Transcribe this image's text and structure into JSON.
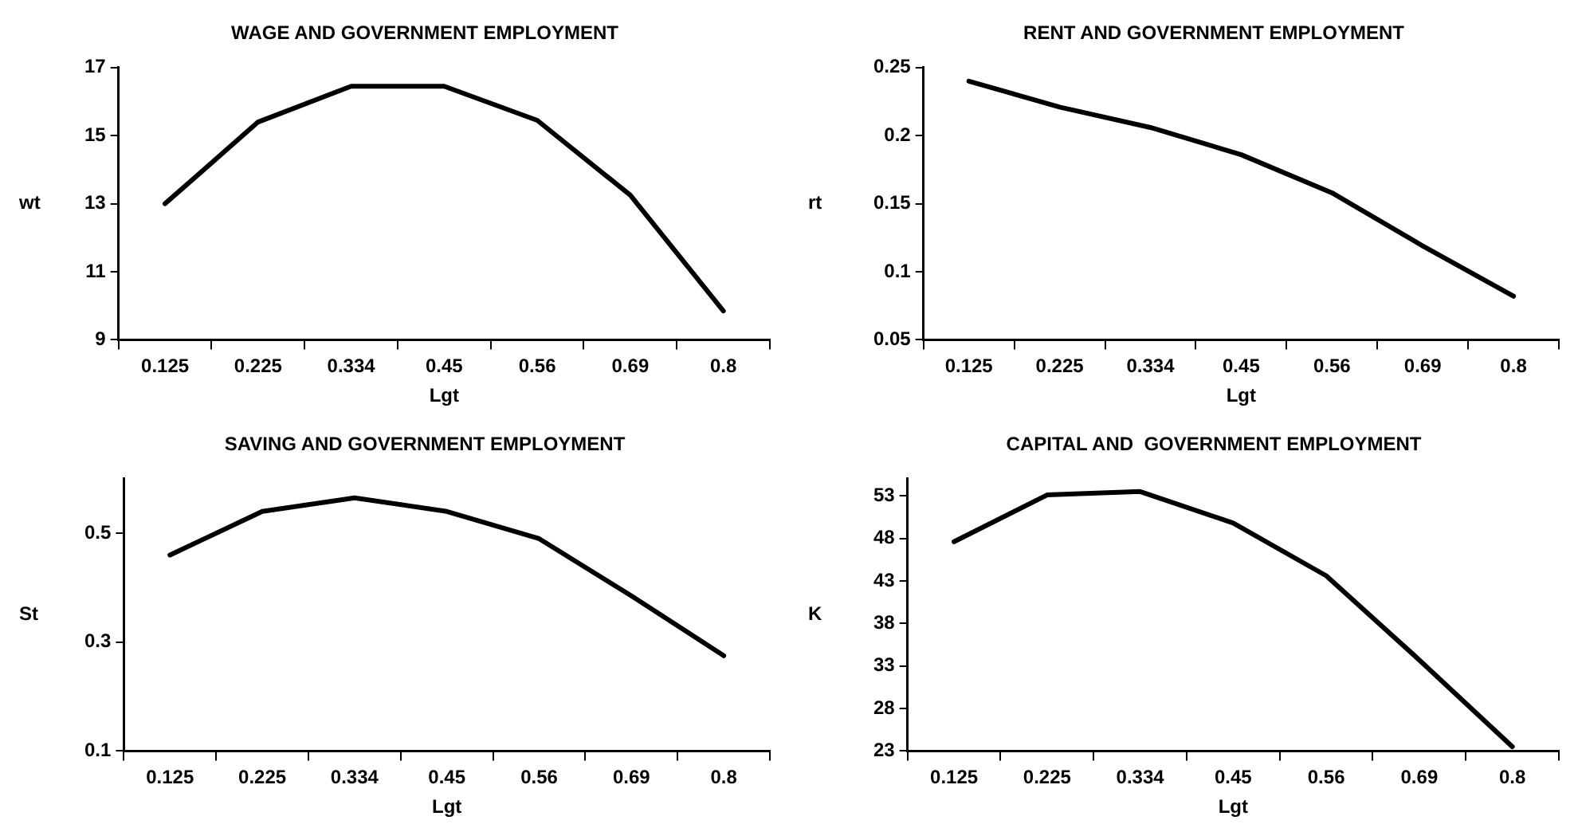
{
  "chart_data": [
    {
      "type": "line",
      "title": "WAGE AND GOVERNMENT EMPLOYMENT",
      "xlabel": "Lgt",
      "ylabel": "wt",
      "categories": [
        "0.125",
        "0.225",
        "0.334",
        "0.45",
        "0.56",
        "0.69",
        "0.8"
      ],
      "series": [
        {
          "color": "#000000",
          "values": [
            13.0,
            15.4,
            16.45,
            16.45,
            15.45,
            13.25,
            9.85
          ]
        }
      ],
      "ylim": [
        9,
        17
      ],
      "yticks": [
        9,
        11,
        13,
        15,
        17
      ],
      "grid": false,
      "marker": "none"
    },
    {
      "type": "line",
      "title": "RENT AND GOVERNMENT EMPLOYMENT",
      "xlabel": "Lgt",
      "ylabel": "rt",
      "categories": [
        "0.125",
        "0.225",
        "0.334",
        "0.45",
        "0.56",
        "0.69",
        "0.8"
      ],
      "series": [
        {
          "color": "#000000",
          "values": [
            0.24,
            0.221,
            0.206,
            0.186,
            0.158,
            0.119,
            0.082
          ]
        }
      ],
      "ylim": [
        0.05,
        0.25
      ],
      "yticks": [
        0.05,
        0.1,
        0.15,
        0.2,
        0.25
      ],
      "grid": false,
      "marker": "none"
    },
    {
      "type": "line",
      "title": "SAVING AND GOVERNMENT EMPLOYMENT",
      "xlabel": "Lgt",
      "ylabel": "St",
      "categories": [
        "0.125",
        "0.225",
        "0.334",
        "0.45",
        "0.56",
        "0.69",
        "0.8"
      ],
      "series": [
        {
          "color": "#000000",
          "values": [
            0.46,
            0.54,
            0.565,
            0.54,
            0.49,
            0.385,
            0.275
          ]
        }
      ],
      "ylim": [
        0.1,
        0.6
      ],
      "yticks": [
        0.1,
        0.3,
        0.5
      ],
      "grid": false,
      "marker": "none"
    },
    {
      "type": "line",
      "title": "CAPITAL AND  GOVERNMENT EMPLOYMENT",
      "xlabel": "Lgt",
      "ylabel": "K",
      "categories": [
        "0.125",
        "0.225",
        "0.334",
        "0.45",
        "0.56",
        "0.69",
        "0.8"
      ],
      "series": [
        {
          "color": "#000000",
          "values": [
            47.6,
            53.1,
            53.5,
            49.8,
            43.6,
            33.7,
            23.5
          ]
        }
      ],
      "ylim": [
        23,
        55
      ],
      "yticks": [
        23,
        28,
        33,
        38,
        43,
        48,
        53
      ],
      "grid": false,
      "marker": "none"
    }
  ]
}
